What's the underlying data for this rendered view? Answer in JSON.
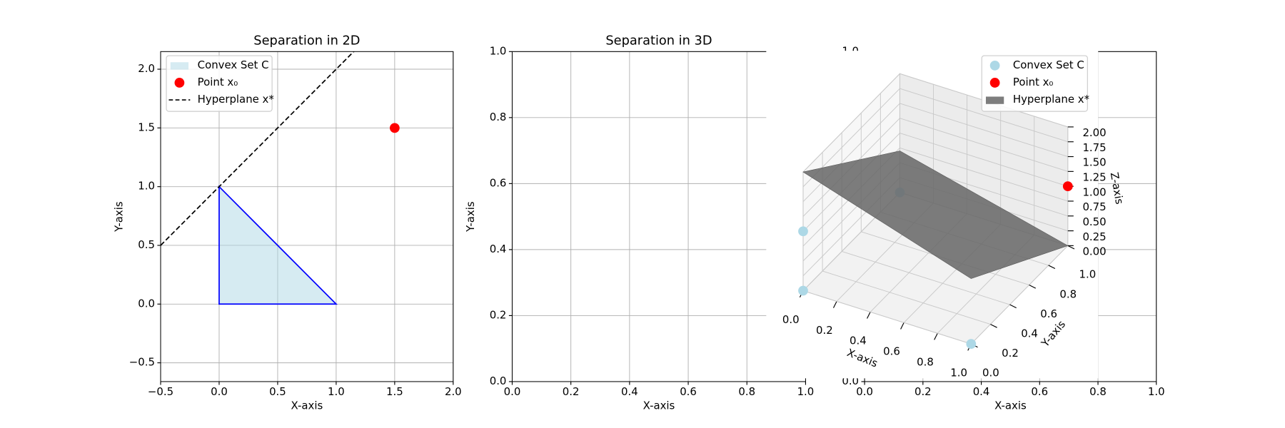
{
  "chart_data": [
    {
      "type": "line",
      "title": "Separation in 2D",
      "xlabel": "X-axis",
      "ylabel": "Y-axis",
      "xlim": [
        -0.5,
        2.0
      ],
      "ylim": [
        -0.66,
        2.15
      ],
      "xticks": [
        {
          "value": -0.5,
          "label": "−0.5"
        },
        {
          "value": 0,
          "label": "0.0"
        },
        0.5,
        {
          "value": 1,
          "label": "1.0"
        },
        1.5,
        {
          "value": 2,
          "label": "2.0"
        }
      ],
      "yticks": [
        {
          "value": -0.5,
          "label": "−0.5"
        },
        {
          "value": 0,
          "label": "0.0"
        },
        0.5,
        {
          "value": 1,
          "label": "1.0"
        },
        1.5,
        {
          "value": 2,
          "label": "2.0"
        }
      ],
      "grid": true,
      "legend": "upper left",
      "series": [
        {
          "name": "Convex Set C",
          "kind": "polygon",
          "x": [
            0,
            1,
            0
          ],
          "y": [
            0,
            0,
            1
          ],
          "color": "#add8e6",
          "alpha": 0.5,
          "edgecolor": "#0000ff"
        },
        {
          "name": "Point x₀",
          "kind": "scatter",
          "x": [
            1.5
          ],
          "y": [
            1.5
          ],
          "color": "#ff0000"
        },
        {
          "name": "Hyperplane x*",
          "kind": "line",
          "x": [
            -0.5,
            2.0
          ],
          "y": [
            0.5,
            3.0
          ],
          "color": "#000000",
          "linestyle": "dashed"
        }
      ]
    },
    {
      "type": "line",
      "title": "Separation in 3D",
      "xlabel": "X-axis",
      "ylabel": "Y-axis",
      "xlim": [
        0,
        1
      ],
      "ylim": [
        0,
        1
      ],
      "xticks": [
        {
          "value": 0,
          "label": "0.0"
        },
        0.2,
        0.4,
        0.6,
        0.8,
        {
          "value": 1,
          "label": "1.0"
        }
      ],
      "yticks": [
        {
          "value": 0,
          "label": "0.0"
        },
        0.2,
        0.4,
        0.6,
        0.8,
        {
          "value": 1,
          "label": "1.0"
        }
      ],
      "grid": true,
      "series": []
    },
    {
      "type": "line",
      "xlabel": "X-axis",
      "xlim": [
        0,
        1
      ],
      "ylim": [
        0,
        1
      ],
      "xticks": [
        {
          "value": 0,
          "label": "0.0"
        },
        0.2,
        0.4,
        0.6,
        0.8,
        {
          "value": 1,
          "label": "1.0"
        }
      ],
      "yticks": [
        {
          "value": 0,
          "label": "0.0"
        },
        0.2,
        0.4,
        0.6,
        0.8,
        {
          "value": 1,
          "label": "1.0"
        }
      ],
      "grid": true,
      "series": []
    },
    {
      "type": "scatter3d",
      "xlabel": "X-axis",
      "ylabel": "Y-axis",
      "zlabel": "Z-axis",
      "xlim": [
        0,
        1
      ],
      "ylim": [
        0,
        1
      ],
      "zlim": [
        0,
        2
      ],
      "xticks": [
        {
          "value": 0,
          "label": "0.0"
        },
        0.2,
        0.4,
        0.6,
        0.8,
        {
          "value": 1,
          "label": "1.0"
        }
      ],
      "yticks": [
        {
          "value": 0,
          "label": "0.0"
        },
        0.2,
        0.4,
        0.6,
        0.8,
        {
          "value": 1,
          "label": "1.0"
        }
      ],
      "zticks": [
        {
          "value": 0,
          "label": "0.00"
        },
        0.25,
        {
          "value": 0.5,
          "label": "0.50"
        },
        0.75,
        {
          "value": 1,
          "label": "1.00"
        },
        1.25,
        {
          "value": 1.5,
          "label": "1.50"
        },
        1.75,
        {
          "value": 2,
          "label": "2.00"
        }
      ],
      "grid": true,
      "legend": "upper right",
      "series": [
        {
          "name": "Convex Set C",
          "kind": "scatter",
          "x": [
            0,
            1,
            0,
            0
          ],
          "y": [
            0,
            0,
            1,
            0
          ],
          "z": [
            0,
            0,
            0,
            1
          ],
          "color": "#add8e6"
        },
        {
          "name": "Point x₀",
          "kind": "scatter",
          "x": [
            1
          ],
          "y": [
            1
          ],
          "z": [
            1
          ],
          "color": "#ff0000"
        },
        {
          "name": "Hyperplane x*",
          "kind": "surface",
          "x": [
            0,
            1
          ],
          "y": [
            0,
            1
          ],
          "z": [
            [
              2.0,
              0.7
            ],
            [
              1.1,
              0.0
            ]
          ],
          "color": "#666666"
        }
      ]
    }
  ]
}
